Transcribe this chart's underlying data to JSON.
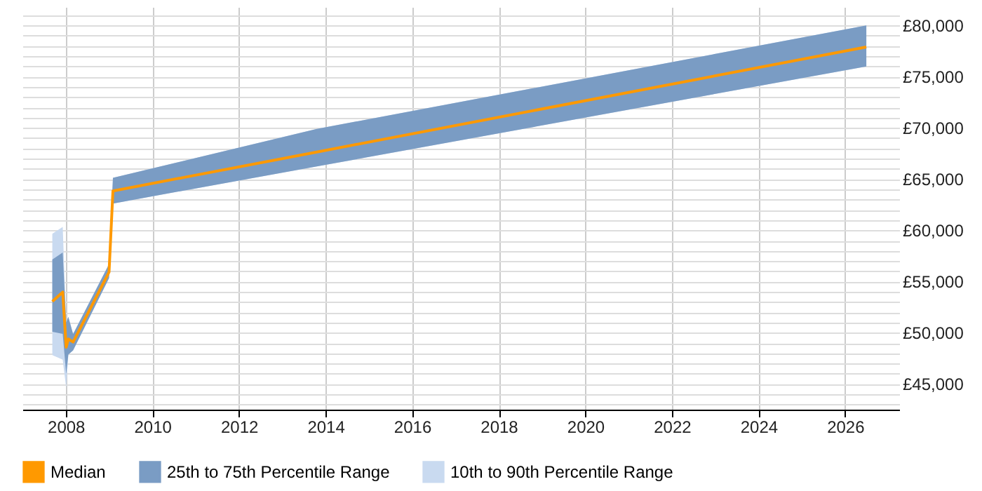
{
  "chart_data": {
    "type": "line",
    "x": [
      2007.69,
      2007.93,
      2008.01,
      2008.06,
      2008.17,
      2009.0,
      2009.09,
      2013.8,
      2026.49
    ],
    "series": [
      {
        "name": "Median",
        "type": "line",
        "color": "#ff9900",
        "values": [
          53060,
          53975,
          48600,
          49400,
          49100,
          55930,
          63850,
          67650,
          77900
        ]
      },
      {
        "name": "25th to 75th Percentile Range",
        "type": "area",
        "color": "#7a9cc4",
        "values": [
          null,
          null,
          null,
          null,
          null,
          null,
          null,
          null,
          null
        ],
        "lower": [
          50100,
          49900,
          46000,
          47870,
          48280,
          55340,
          62620,
          66240,
          76000
        ],
        "upper": [
          57160,
          57840,
          51000,
          51560,
          49870,
          56700,
          65120,
          69900,
          80000
        ]
      },
      {
        "name": "10th to 90th Percentile Range",
        "type": "area",
        "color": "#c9daf0",
        "values": [
          null,
          null,
          null,
          null,
          null,
          null,
          null,
          null,
          null
        ],
        "lower": [
          47830,
          47370,
          44630,
          47870,
          48280,
          55340,
          62620,
          66240,
          76000
        ],
        "upper": [
          59660,
          60340,
          51000,
          51560,
          49870,
          56700,
          65120,
          69900,
          80000
        ]
      }
    ],
    "xlim": [
      2007,
      2027.25
    ],
    "xticks": [
      2008,
      2010,
      2012,
      2014,
      2016,
      2018,
      2020,
      2022,
      2024,
      2026
    ],
    "ylim": [
      42500,
      81800
    ],
    "yticks": [
      {
        "value": 43000,
        "label": null
      },
      {
        "value": 44000,
        "label": null
      },
      {
        "value": 45000,
        "label": "£45,000"
      },
      {
        "value": 46000,
        "label": null
      },
      {
        "value": 47000,
        "label": null
      },
      {
        "value": 48000,
        "label": null
      },
      {
        "value": 49000,
        "label": null
      },
      {
        "value": 50000,
        "label": "£50,000"
      },
      {
        "value": 51000,
        "label": null
      },
      {
        "value": 52000,
        "label": null
      },
      {
        "value": 53000,
        "label": null
      },
      {
        "value": 54000,
        "label": null
      },
      {
        "value": 55000,
        "label": "£55,000"
      },
      {
        "value": 56000,
        "label": null
      },
      {
        "value": 57000,
        "label": null
      },
      {
        "value": 58000,
        "label": null
      },
      {
        "value": 59000,
        "label": null
      },
      {
        "value": 60000,
        "label": "£60,000"
      },
      {
        "value": 61000,
        "label": null
      },
      {
        "value": 62000,
        "label": null
      },
      {
        "value": 63000,
        "label": null
      },
      {
        "value": 64000,
        "label": null
      },
      {
        "value": 65000,
        "label": "£65,000"
      },
      {
        "value": 66000,
        "label": null
      },
      {
        "value": 67000,
        "label": null
      },
      {
        "value": 68000,
        "label": null
      },
      {
        "value": 69000,
        "label": null
      },
      {
        "value": 70000,
        "label": "£70,000"
      },
      {
        "value": 71000,
        "label": null
      },
      {
        "value": 72000,
        "label": null
      },
      {
        "value": 73000,
        "label": null
      },
      {
        "value": 74000,
        "label": null
      },
      {
        "value": 75000,
        "label": "£75,000"
      },
      {
        "value": 76000,
        "label": null
      },
      {
        "value": 77000,
        "label": null
      },
      {
        "value": 78000,
        "label": null
      },
      {
        "value": 79000,
        "label": null
      },
      {
        "value": 80000,
        "label": "£80,000"
      },
      {
        "value": 81000,
        "label": null
      }
    ],
    "grid": true,
    "legend": "bottom",
    "marker": "none",
    "line_style": "solid"
  }
}
